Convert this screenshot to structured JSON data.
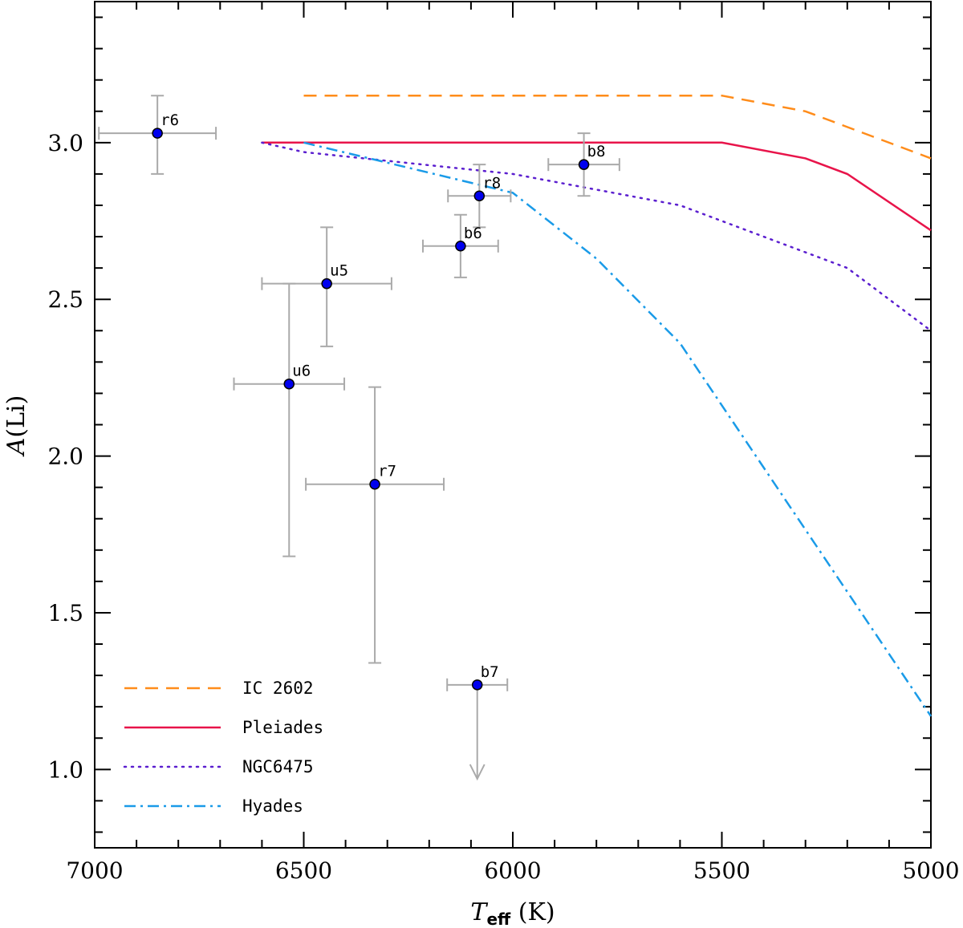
{
  "chart_data": {
    "type": "scatter",
    "title": "",
    "xlabel": {
      "main": "T",
      "sub": "eff",
      "unit": " (K)"
    },
    "ylabel": {
      "italic": "A",
      "rest": "(Li)"
    },
    "xlim": [
      7000,
      5000
    ],
    "ylim": [
      0.75,
      3.45
    ],
    "xticks": [
      7000,
      6500,
      6000,
      5500,
      5000
    ],
    "xtick_labels": [
      "7000",
      "6500",
      "6000",
      "5500",
      "5000"
    ],
    "yticks": [
      1.0,
      1.5,
      2.0,
      2.5,
      3.0
    ],
    "ytick_labels": [
      "1.0",
      "1.5",
      "2.0",
      "2.5",
      "3.0"
    ],
    "grid": false,
    "legend_position": "bottom-left",
    "points": [
      {
        "label": "r6",
        "teff": 6850,
        "ali": 3.03,
        "xerr": 140,
        "yerr_up": 0.12,
        "yerr_down": 0.13,
        "upper_limit": false
      },
      {
        "label": "u5",
        "teff": 6445,
        "ali": 2.55,
        "xerr": 155,
        "yerr_up": 0.18,
        "yerr_down": 0.2,
        "upper_limit": false
      },
      {
        "label": "u6",
        "teff": 6535,
        "ali": 2.23,
        "xerr": 132,
        "yerr_up": 0.32,
        "yerr_down": 0.55,
        "upper_limit": false
      },
      {
        "label": "r7",
        "teff": 6330,
        "ali": 1.91,
        "xerr": 165,
        "yerr_up": 0.31,
        "yerr_down": 0.57,
        "upper_limit": false
      },
      {
        "label": "b6",
        "teff": 6125,
        "ali": 2.67,
        "xerr": 90,
        "yerr_up": 0.1,
        "yerr_down": 0.1,
        "upper_limit": false
      },
      {
        "label": "r8",
        "teff": 6080,
        "ali": 2.83,
        "xerr": 75,
        "yerr_up": 0.1,
        "yerr_down": 0.1,
        "upper_limit": false
      },
      {
        "label": "b8",
        "teff": 5830,
        "ali": 2.93,
        "xerr": 85,
        "yerr_up": 0.1,
        "yerr_down": 0.1,
        "upper_limit": false
      },
      {
        "label": "b7",
        "teff": 6085,
        "ali": 1.27,
        "xerr": 72,
        "yerr_up": 0,
        "yerr_down": 0.3,
        "upper_limit": true
      }
    ],
    "series": [
      {
        "name": "IC 2602",
        "color": "#ff8c1a",
        "dash": "dashed",
        "teff": [
          6500,
          5500,
          5300,
          5000
        ],
        "ali": [
          3.15,
          3.15,
          3.1,
          2.95
        ]
      },
      {
        "name": "Pleiades",
        "color": "#e8144a",
        "dash": "solid",
        "teff": [
          6600,
          5500,
          5300,
          5200,
          5000
        ],
        "ali": [
          3.0,
          3.0,
          2.95,
          2.9,
          2.72
        ]
      },
      {
        "name": "NGC6475",
        "color": "#5b1fcf",
        "dash": "dotted",
        "teff": [
          6600,
          6500,
          6000,
          5600,
          5200,
          5000
        ],
        "ali": [
          3.0,
          2.97,
          2.9,
          2.8,
          2.6,
          2.4
        ]
      },
      {
        "name": "Hyades",
        "color": "#1a9be8",
        "dash": "dashdot",
        "teff": [
          6500,
          6000,
          5800,
          5600,
          5000
        ],
        "ali": [
          3.0,
          2.84,
          2.63,
          2.36,
          1.17
        ]
      }
    ],
    "colors": {
      "marker_fill": "#0000ee",
      "marker_edge": "#000000",
      "errorbar": "#aaaaaa",
      "axis": "#000000"
    }
  }
}
